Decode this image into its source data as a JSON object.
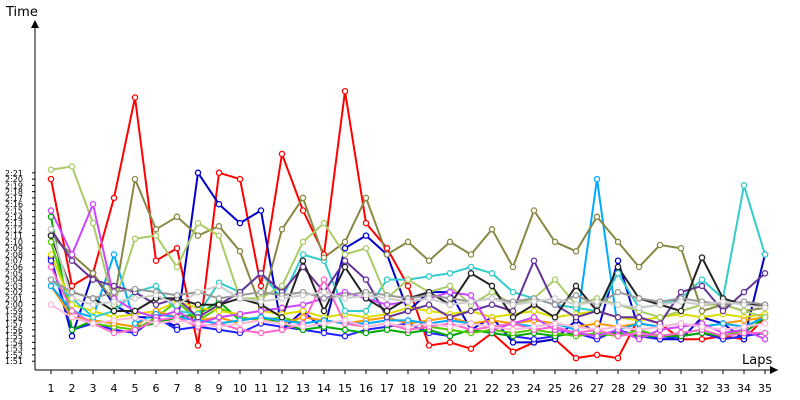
{
  "chart_data": {
    "type": "line",
    "title": "",
    "xlabel": "Laps",
    "ylabel": "Time",
    "x": [
      1,
      2,
      3,
      4,
      5,
      6,
      7,
      8,
      9,
      10,
      11,
      12,
      13,
      14,
      15,
      16,
      17,
      18,
      19,
      20,
      21,
      22,
      23,
      24,
      25,
      26,
      27,
      28,
      29,
      30,
      31,
      32,
      33,
      34,
      35
    ],
    "y_ticks": [
      "1:51",
      "1:52",
      "1:53",
      "1:54",
      "1:55",
      "1:56",
      "1:57",
      "1:58",
      "1:59",
      "2:00",
      "2:01",
      "2:02",
      "2:03",
      "2:04",
      "2:05",
      "2:06",
      "2:07",
      "2:08",
      "2:09",
      "2:10",
      "2:11",
      "2:12",
      "2:13",
      "2:14",
      "2:15",
      "2:16",
      "2:17",
      "2:18",
      "2:19",
      "2:20",
      "2:21"
    ],
    "ylim_seconds": [
      110,
      142
    ],
    "grid": false,
    "legend": "none",
    "series": [
      {
        "color": "#ff0000",
        "values": [
          140,
          123,
          125,
          137,
          153,
          127,
          129,
          113.5,
          141,
          140,
          123,
          144,
          135,
          128,
          154,
          133,
          129,
          123,
          113.5,
          114,
          113,
          115.5,
          112.5,
          114,
          114.5,
          111.5,
          112,
          111.5,
          118,
          117,
          114.5,
          114.5,
          115,
          114.5,
          118
        ]
      },
      {
        "color": "#0000cc",
        "values": [
          127.5,
          115,
          125,
          120,
          118,
          118,
          116.5,
          141,
          136,
          133,
          135,
          116,
          119,
          116,
          129,
          131,
          128,
          119,
          122,
          122,
          116,
          118,
          114,
          114,
          114.5,
          117.5,
          115.5,
          127,
          116,
          114.5,
          114.5,
          118,
          117,
          114.5,
          128
        ]
      },
      {
        "color": "#2222ff",
        "values": [
          127,
          116,
          117,
          116,
          115.5,
          118,
          116,
          116.5,
          116,
          115.5,
          117,
          116.5,
          116,
          115.5,
          115,
          116,
          116.5,
          117,
          115.5,
          115,
          116,
          115.5,
          115,
          114.5,
          115,
          115.5,
          114.5,
          116,
          115,
          114.5,
          115,
          115.5,
          114.5,
          115,
          115.5
        ]
      },
      {
        "color": "#00aa00",
        "values": [
          134,
          116,
          117.5,
          117,
          116.5,
          117,
          118,
          118.5,
          120.5,
          117.5,
          118,
          117,
          116,
          116.5,
          116,
          115.5,
          116,
          115.5,
          116,
          115,
          116,
          115.5,
          115,
          115.5,
          115,
          115.5,
          115,
          115.5,
          115,
          115,
          115,
          115.5,
          115,
          115.5,
          118
        ]
      },
      {
        "color": "#55cc00",
        "values": [
          130,
          119,
          117,
          116.5,
          116,
          118,
          120.5,
          117.5,
          119.5,
          118,
          117.5,
          118,
          117,
          117.5,
          117,
          116.5,
          117,
          116,
          116.5,
          116,
          115.5,
          116,
          115.5,
          116,
          115.5,
          115,
          115.5,
          115,
          116,
          115,
          115.5,
          116,
          115,
          116,
          118.5
        ]
      },
      {
        "color": "#dddd00",
        "values": [
          128,
          120,
          119,
          118,
          118.5,
          119,
          120.5,
          119.5,
          119,
          118.5,
          119,
          118.5,
          119,
          118,
          118.5,
          118,
          118.5,
          119.5,
          119,
          118.5,
          119,
          118,
          118.5,
          119,
          118,
          118.5,
          119,
          118,
          117.5,
          118,
          118.5,
          118,
          118.5,
          118,
          118.5
        ]
      },
      {
        "color": "#ff9900",
        "values": [
          123,
          118,
          117.5,
          117,
          116.5,
          119,
          118,
          117.5,
          118,
          117,
          117.5,
          117,
          118,
          117.5,
          117,
          117.5,
          118,
          117,
          117.5,
          118,
          117,
          117.5,
          117,
          117.5,
          117,
          116.5,
          117,
          116.5,
          117,
          116.5,
          117,
          116.5,
          117,
          117.5,
          118
        ]
      },
      {
        "color": "#00aaff",
        "values": [
          123,
          119,
          118,
          128,
          117,
          118.5,
          118,
          117.5,
          117,
          117.5,
          118,
          117.5,
          117,
          117.5,
          117,
          117,
          117.5,
          117.5,
          117,
          117.5,
          117,
          116.5,
          117,
          116.5,
          117,
          116,
          140,
          116,
          117,
          116.5,
          117,
          116.5,
          117,
          116.5,
          118
        ]
      },
      {
        "color": "#33cccc",
        "values": [
          124,
          121,
          118,
          119,
          122,
          123,
          119,
          118.5,
          123.5,
          122,
          125,
          121,
          128,
          127,
          119,
          119,
          124,
          124,
          124.5,
          125,
          126,
          125,
          122,
          121,
          120,
          119.5,
          119,
          125,
          119.5,
          120,
          121,
          124,
          121,
          139,
          128
        ]
      },
      {
        "color": "#888844",
        "values": [
          131,
          128,
          125,
          120.5,
          140,
          132,
          134,
          131,
          132.5,
          128.5,
          119.5,
          132,
          137,
          127.5,
          130,
          137,
          128,
          130,
          127,
          130,
          128,
          132,
          126,
          135,
          130,
          128.5,
          134,
          130,
          126,
          129.5,
          129,
          119,
          120,
          119,
          119.5
        ]
      },
      {
        "color": "#aacc66",
        "values": [
          141.5,
          142,
          133,
          120,
          130.5,
          131,
          126,
          133,
          131,
          121,
          121,
          123,
          130,
          133,
          128,
          129,
          121,
          124,
          122,
          123,
          120,
          122,
          120,
          121,
          124,
          120,
          121,
          120,
          119,
          118,
          119,
          120,
          120,
          119,
          118
        ]
      },
      {
        "color": "#663399",
        "values": [
          132,
          127,
          124,
          123,
          122,
          120,
          121,
          118,
          120,
          122,
          125,
          122,
          126,
          122,
          127,
          124,
          118,
          119,
          120,
          118,
          119,
          120,
          119,
          127,
          120,
          118,
          119,
          118,
          118,
          117,
          122,
          123,
          119,
          122,
          125
        ]
      },
      {
        "color": "#cc44ff",
        "values": [
          135,
          128,
          136,
          121,
          119,
          118,
          119,
          117,
          118,
          118.5,
          119,
          119.5,
          120,
          121,
          122,
          121,
          120,
          120.5,
          121,
          122,
          121.5,
          116,
          117,
          118,
          116,
          115.5,
          115,
          116,
          114.5,
          116,
          116.5,
          117,
          115.5,
          116,
          114.5
        ]
      },
      {
        "color": "#ff66cc",
        "values": [
          126,
          119,
          117,
          115.5,
          116,
          117.5,
          118,
          116.5,
          117,
          116,
          115.5,
          116,
          117,
          124,
          117,
          116.5,
          117,
          116,
          116.5,
          117,
          116,
          116.5,
          117,
          116,
          116.5,
          115.5,
          116,
          115,
          115.5,
          115,
          115.5,
          116,
          115,
          115.5,
          115.5
        ]
      },
      {
        "color": "#222222",
        "values": [
          131,
          122,
          121,
          119,
          119,
          121,
          121,
          120,
          120,
          121,
          120,
          118,
          127,
          119,
          126,
          121,
          119,
          121,
          122,
          120,
          125,
          123,
          118,
          120,
          118,
          123,
          119,
          126,
          121,
          120,
          119,
          127.5,
          121,
          120,
          120
        ]
      },
      {
        "color": "#999999",
        "values": [
          124,
          122,
          121,
          122,
          122.5,
          122,
          121.5,
          122,
          121,
          121.5,
          122,
          121.5,
          122,
          121,
          121.5,
          122,
          121.5,
          121,
          121.5,
          121,
          120.5,
          121,
          120.5,
          121,
          120,
          121.5,
          120,
          122,
          121,
          120.5,
          121,
          120.5,
          120,
          120.5,
          120
        ]
      },
      {
        "color": "#cccccc",
        "values": [
          132,
          121,
          120,
          120.5,
          121,
          121.5,
          120,
          122,
          123,
          121,
          120.5,
          121,
          121.5,
          122,
          121,
          121.5,
          121,
          120.5,
          121,
          120,
          120.5,
          121,
          120,
          120.5,
          121,
          120,
          120.5,
          120,
          119.5,
          120,
          120.5,
          120,
          120.5,
          120,
          119.5
        ]
      },
      {
        "color": "#ffbbdd",
        "values": [
          120,
          118,
          117,
          117.5,
          118,
          117,
          117.5,
          117,
          116.5,
          117,
          117.5,
          117,
          116.5,
          117,
          117.5,
          116.5,
          117,
          116.5,
          117,
          116.5,
          117,
          116.5,
          116,
          116.5,
          117,
          116.5,
          116,
          116.5,
          116,
          116.5,
          117,
          116.5,
          116,
          116.5,
          117
        ]
      }
    ]
  }
}
